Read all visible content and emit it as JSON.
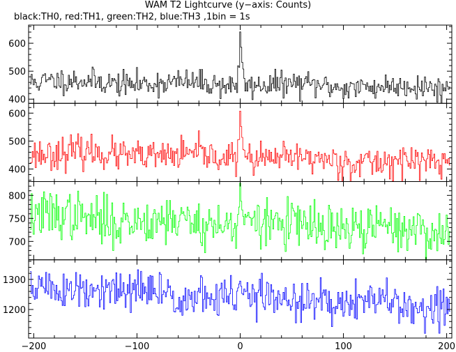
{
  "title": "WAM T2 Lightcurve (y−axis: Counts)",
  "subtitle": "black:TH0, red:TH1, green:TH2, blue:TH3 ,1bin = 1s",
  "chart_data": {
    "type": "line",
    "xlim": [
      -205,
      205
    ],
    "x_ticks": [
      -200,
      -100,
      0,
      100,
      200
    ],
    "x_tick_labels": [
      "−200",
      "−100",
      "0",
      "100",
      "200"
    ],
    "x_step": 1,
    "panels": [
      {
        "name": "TH0",
        "color": "#000000",
        "ylim": [
          385,
          665
        ],
        "y_ticks": [
          400,
          500,
          600
        ],
        "y_tick_labels": [
          "400",
          "500",
          "600"
        ],
        "baseline_start": 465,
        "baseline_end": 440,
        "noise": 22,
        "peak": {
          "x": 0,
          "value": 650
        },
        "seed": 11
      },
      {
        "name": "TH1",
        "color": "#ff0000",
        "ylim": [
          355,
          635
        ],
        "y_ticks": [
          400,
          500,
          600
        ],
        "y_tick_labels": [
          "400",
          "500",
          "600"
        ],
        "baseline_start": 460,
        "baseline_end": 420,
        "noise": 28,
        "peak": {
          "x": 0,
          "value": 625
        },
        "seed": 23
      },
      {
        "name": "TH2",
        "color": "#00ff00",
        "ylim": [
          660,
          830
        ],
        "y_ticks": [
          700,
          750,
          800
        ],
        "y_tick_labels": [
          "700",
          "750",
          "800"
        ],
        "baseline_start": 755,
        "baseline_end": 720,
        "noise": 26,
        "peak": {
          "x": 0,
          "value": 825
        },
        "seed": 37
      },
      {
        "name": "TH3",
        "color": "#0000ff",
        "ylim": [
          1105,
          1365
        ],
        "y_ticks": [
          1200,
          1300
        ],
        "y_tick_labels": [
          "1200",
          "1300"
        ],
        "baseline_start": 1270,
        "baseline_end": 1210,
        "noise": 35,
        "peak": {
          "x": 0,
          "value": 1300
        },
        "seed": 51
      }
    ]
  }
}
